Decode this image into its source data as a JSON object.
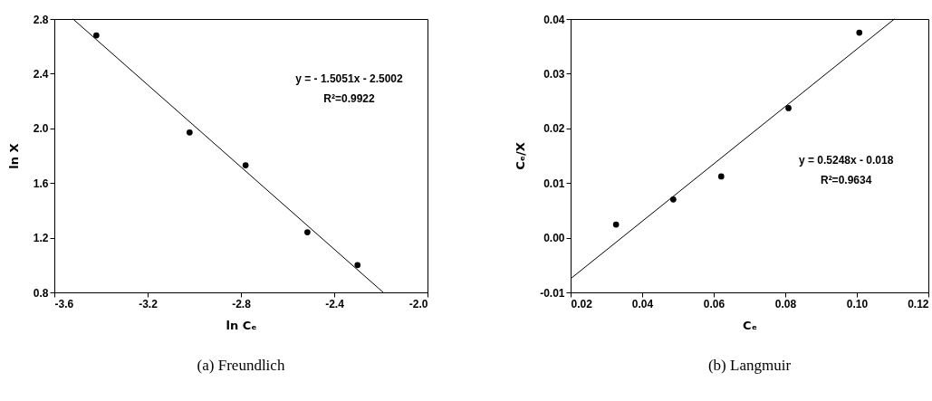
{
  "chart_data": [
    {
      "type": "scatter",
      "title": "(a) Freundlich",
      "xlabel": "ln Cₑ",
      "ylabel": "ln X",
      "grid": false,
      "xlim": [
        -3.6,
        -2.0
      ],
      "xticks": [
        -3.6,
        -3.2,
        -2.8,
        -2.4,
        {
          "value": -2.0,
          "label": "-2.0"
        }
      ],
      "ylim": [
        0.8,
        2.8
      ],
      "yticks": [
        0.8,
        1.2,
        1.6,
        {
          "value": 2.0,
          "label": "2.0"
        },
        2.4,
        2.8
      ],
      "annotations": [
        "y = - 1.5051x - 2.5002",
        "R²=0.9922"
      ],
      "series": [
        {
          "type": "scatter",
          "marker": "circle",
          "color": "#000000",
          "x": [
            -3.42,
            -3.02,
            -2.78,
            -2.515,
            -2.3
          ],
          "values": [
            2.68,
            1.97,
            1.73,
            1.24,
            1.0
          ]
        },
        {
          "type": "line",
          "color": "#000000",
          "x": [
            -3.52,
            -2.19
          ],
          "values": [
            2.8,
            0.8
          ]
        }
      ]
    },
    {
      "type": "scatter",
      "title": "(b) Langmuir",
      "xlabel": "Cₑ",
      "ylabel": "Cₑ/X",
      "grid": false,
      "xlim": [
        0.02,
        0.12
      ],
      "xticks": [
        0.02,
        0.04,
        0.06,
        0.08,
        {
          "value": 0.1,
          "label": "0.10"
        },
        0.12
      ],
      "ylim": [
        -0.01,
        0.04
      ],
      "yticks": [
        -0.01,
        {
          "value": 0,
          "label": "0.00"
        },
        0.01,
        0.02,
        0.03,
        0.04
      ],
      "annotations": [
        "y = 0.5248x - 0.018",
        "R²=0.9634"
      ],
      "series": [
        {
          "type": "scatter",
          "marker": "circle",
          "color": "#000000",
          "x": [
            0.0327,
            0.0487,
            0.0621,
            0.0809,
            0.1007
          ],
          "values": [
            0.0024,
            0.007,
            0.0112,
            0.0237,
            0.0375
          ]
        },
        {
          "type": "line",
          "color": "#000000",
          "x": [
            0.02,
            0.1105
          ],
          "values": [
            -0.0075,
            0.04
          ]
        }
      ]
    }
  ]
}
